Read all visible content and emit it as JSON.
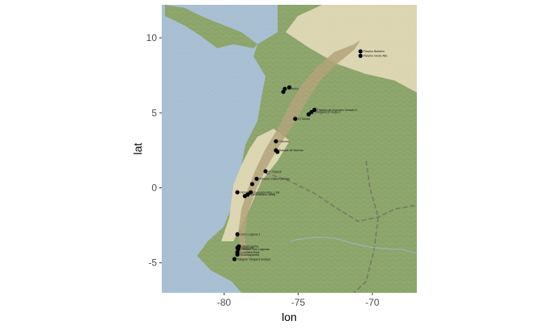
{
  "chart_data": {
    "type": "scatter",
    "title": "",
    "xlabel": "lon",
    "ylabel": "lat",
    "xlim": [
      -84.2,
      -67.0
    ],
    "ylim": [
      -7.0,
      12.2
    ],
    "xticks": [
      -80,
      -75,
      -70
    ],
    "xtick_labels": [
      "-80",
      "-75",
      "-70"
    ],
    "yticks": [
      -5,
      0,
      5,
      10
    ],
    "ytick_labels": [
      "-5",
      "0",
      "5",
      "10"
    ],
    "grid": false,
    "legend": "none",
    "basemap": "terrain",
    "point_color": "#000000",
    "points": [
      {
        "lon": -70.8,
        "lat": 9.1,
        "label": "Páramo Batallón"
      },
      {
        "lon": -70.8,
        "lat": 8.8,
        "label": "Páramo Verde Alto"
      },
      {
        "lon": -75.6,
        "lat": 6.7,
        "label": ""
      },
      {
        "lon": -75.9,
        "lat": 6.6,
        "label": "El Retiro"
      },
      {
        "lon": -76.0,
        "lat": 6.4,
        "label": ""
      },
      {
        "lon": -73.9,
        "lat": 5.2,
        "label": "Páramo de Guerrero Venado II"
      },
      {
        "lon": -74.1,
        "lat": 5.05,
        "label": "Chingaza El Golpe 1"
      },
      {
        "lon": -74.3,
        "lat": 4.9,
        "label": ""
      },
      {
        "lon": -75.2,
        "lat": 4.6,
        "label": "El Tolima"
      },
      {
        "lon": -76.5,
        "lat": 3.1,
        "label": "Chicoral"
      },
      {
        "lon": -76.5,
        "lat": 2.5,
        "label": "Bosque de Huevos"
      },
      {
        "lon": -76.4,
        "lat": 2.4,
        "label": ""
      },
      {
        "lon": -77.2,
        "lat": 1.1,
        "label": "El Cujacal"
      },
      {
        "lon": -77.8,
        "lat": 0.6,
        "label": "Páramo Chiles-Cumbal"
      },
      {
        "lon": -78.1,
        "lat": 0.25,
        "label": ""
      },
      {
        "lon": -79.1,
        "lat": -0.3,
        "label": "Pichincha"
      },
      {
        "lon": -78.2,
        "lat": -0.3,
        "label": "Oyacachi-Pico 1.1M"
      },
      {
        "lon": -78.4,
        "lat": -0.45,
        "label": "Carihuairazo Valley"
      },
      {
        "lon": -78.6,
        "lat": -0.55,
        "label": ""
      },
      {
        "lon": -79.1,
        "lat": -3.1,
        "label": "Cerro Laguna 1"
      },
      {
        "lon": -79.0,
        "lat": -3.9,
        "label": "Sinchi Sacha"
      },
      {
        "lon": -79.1,
        "lat": -4.0,
        "label": "Cajanuma"
      },
      {
        "lon": -79.05,
        "lat": -4.1,
        "label": "Páramo Tres Lagunas"
      },
      {
        "lon": -79.1,
        "lat": -4.3,
        "label": "Cordillera Real"
      },
      {
        "lon": -79.1,
        "lat": -4.45,
        "label": "Huashapamba"
      },
      {
        "lon": -79.3,
        "lat": -4.75,
        "label": "Pargesh Yangana Bosque"
      }
    ]
  }
}
